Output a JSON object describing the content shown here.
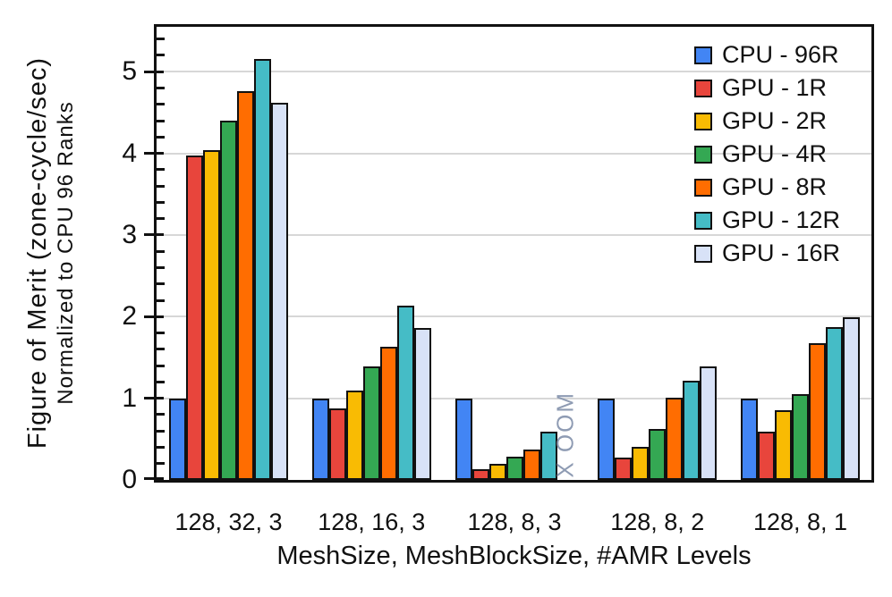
{
  "chart_data": {
    "type": "bar",
    "title": "",
    "xlabel": "MeshSize, MeshBlockSize, #AMR Levels",
    "ylabel": "Figure of Merit (zone-cycle/sec)",
    "ylabel_sub": "Normalized to CPU 96 Ranks",
    "categories": [
      "128, 32, 3",
      "128, 16, 3",
      "128, 8, 3",
      "128, 8, 2",
      "128, 8, 1"
    ],
    "series": [
      {
        "name": "CPU - 96R",
        "color": "#4285F4",
        "values": [
          1.0,
          1.0,
          1.0,
          1.0,
          1.0
        ]
      },
      {
        "name": "GPU - 1R",
        "color": "#E8453C",
        "values": [
          3.97,
          0.88,
          0.13,
          0.27,
          0.59
        ]
      },
      {
        "name": "GPU - 2R",
        "color": "#F9BB03",
        "values": [
          4.04,
          1.1,
          0.2,
          0.41,
          0.85
        ]
      },
      {
        "name": "GPU - 4R",
        "color": "#34A853",
        "values": [
          4.4,
          1.39,
          0.28,
          0.62,
          1.05
        ]
      },
      {
        "name": "GPU - 8R",
        "color": "#FF6D01",
        "values": [
          4.76,
          1.63,
          0.37,
          1.01,
          1.68
        ]
      },
      {
        "name": "GPU - 12R",
        "color": "#45BCC6",
        "values": [
          5.16,
          2.14,
          0.59,
          1.22,
          1.87
        ]
      },
      {
        "name": "GPU - 16R",
        "color": "#D8E2F7",
        "values": [
          4.62,
          1.86,
          null,
          1.39,
          1.99
        ]
      }
    ],
    "missing_label": "X OOM",
    "missing_color": "#8E9BB3",
    "y_ticks": [
      0,
      1,
      2,
      3,
      4,
      5
    ],
    "minor_tick_step": 0.2,
    "ylim": [
      0,
      5.55
    ],
    "grid": true,
    "legend_position": "top-right-inside"
  }
}
